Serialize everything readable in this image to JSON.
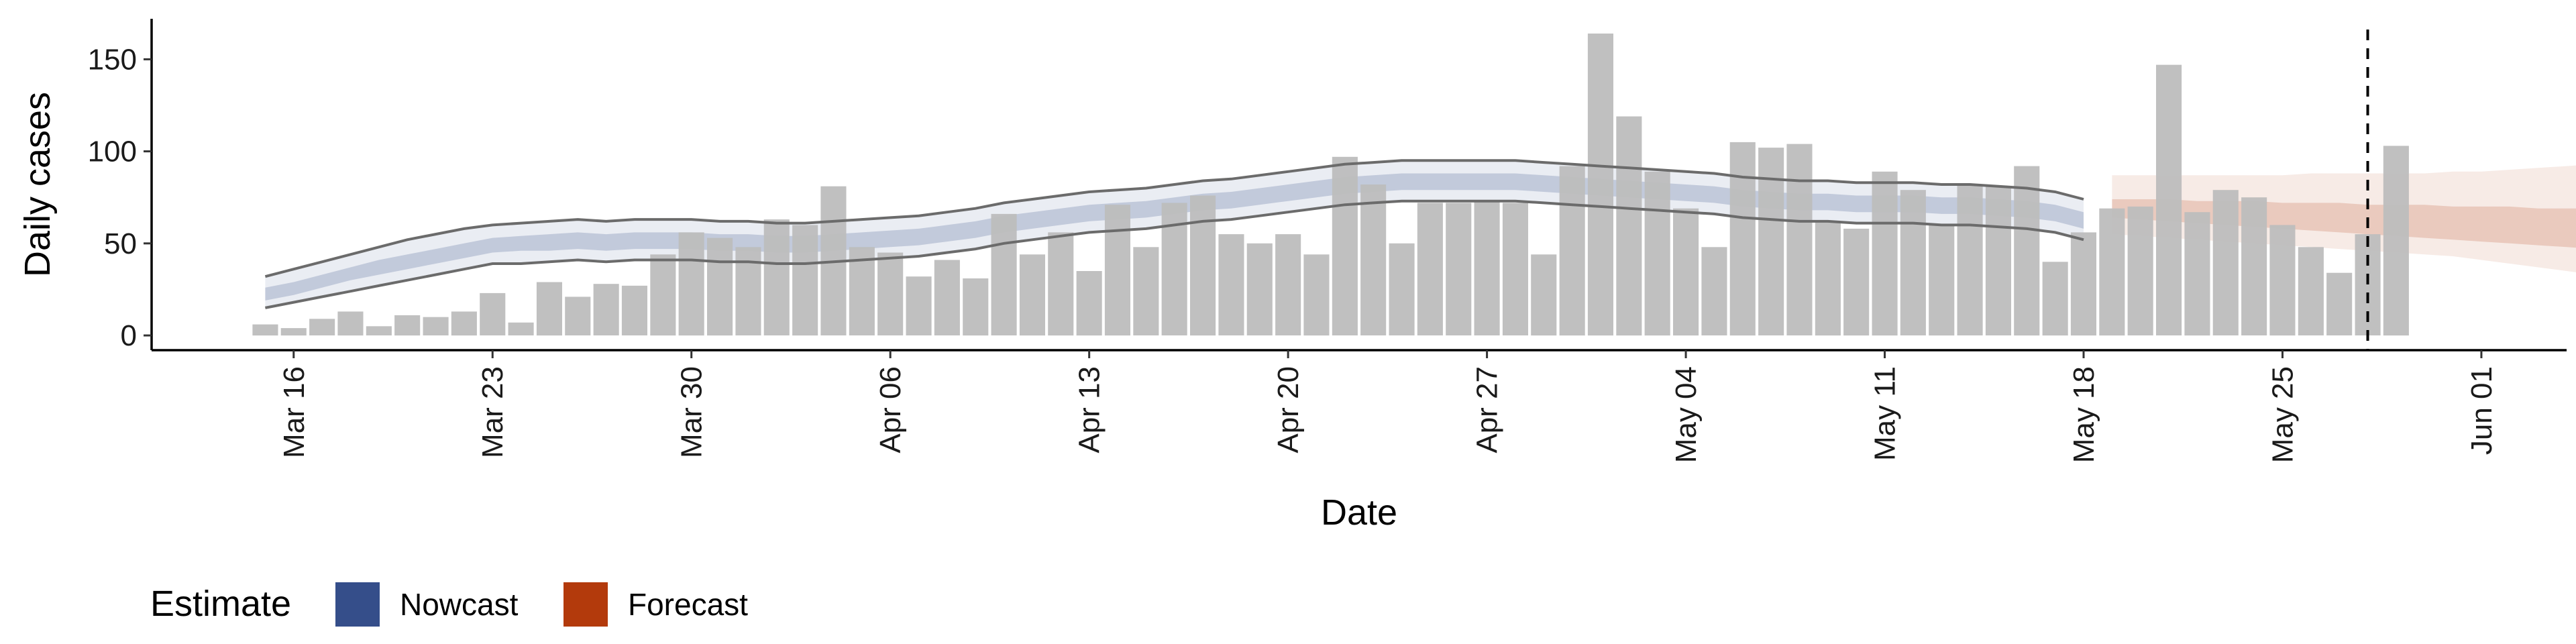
{
  "chart_data": {
    "type": "bar",
    "xlabel": "Date",
    "ylabel": "Daily cases",
    "xlim": [
      "2020-03-11",
      "2020-06-04"
    ],
    "ylim": [
      -8,
      172
    ],
    "x_ticks": [
      {
        "date": "2020-03-16",
        "label": "Mar 16"
      },
      {
        "date": "2020-03-23",
        "label": "Mar 23"
      },
      {
        "date": "2020-03-30",
        "label": "Mar 30"
      },
      {
        "date": "2020-04-06",
        "label": "Apr 06"
      },
      {
        "date": "2020-04-13",
        "label": "Apr 13"
      },
      {
        "date": "2020-04-20",
        "label": "Apr 20"
      },
      {
        "date": "2020-04-27",
        "label": "Apr 27"
      },
      {
        "date": "2020-05-04",
        "label": "May 04"
      },
      {
        "date": "2020-05-11",
        "label": "May 11"
      },
      {
        "date": "2020-05-18",
        "label": "May 18"
      },
      {
        "date": "2020-05-25",
        "label": "May 25"
      },
      {
        "date": "2020-06-01",
        "label": "Jun 01"
      }
    ],
    "y_ticks": [
      {
        "value": 0,
        "label": "0"
      },
      {
        "value": 50,
        "label": "50"
      },
      {
        "value": 100,
        "label": "100"
      },
      {
        "value": 150,
        "label": "150"
      }
    ],
    "grid": false,
    "legend_position": "bottom-left",
    "legend": {
      "title": "Estimate",
      "items": [
        {
          "label": "Nowcast",
          "color": "#354e8a"
        },
        {
          "label": "Forecast",
          "color": "#b33a0c"
        }
      ]
    },
    "bars": {
      "color": "#bdbdbd",
      "start_date": "2020-03-15",
      "values": [
        6,
        4,
        9,
        13,
        5,
        11,
        10,
        13,
        23,
        7,
        29,
        21,
        28,
        27,
        44,
        56,
        53,
        48,
        63,
        60,
        81,
        48,
        45,
        32,
        41,
        31,
        66,
        44,
        56,
        35,
        71,
        48,
        72,
        76,
        55,
        50,
        55,
        44,
        97,
        82,
        50,
        72,
        72,
        73,
        72,
        44,
        92,
        164,
        119,
        89,
        69,
        48,
        105,
        102,
        104,
        62,
        58,
        89,
        79,
        60,
        82,
        81,
        92,
        40,
        56,
        69,
        70,
        147,
        67,
        79,
        75,
        60,
        48,
        34,
        55,
        103
      ]
    },
    "vline_date": "2020-05-28",
    "nowcast": {
      "color": "#354e8a",
      "start_date": "2020-03-15",
      "dates_count": 65,
      "lower_90": [
        15,
        18,
        21,
        24,
        27,
        30,
        33,
        36,
        39,
        39,
        40,
        41,
        40,
        41,
        41,
        41,
        40,
        40,
        39,
        39,
        40,
        41,
        42,
        43,
        45,
        47,
        50,
        52,
        54,
        56,
        57,
        58,
        60,
        62,
        63,
        65,
        67,
        69,
        71,
        72,
        73,
        73,
        73,
        73,
        73,
        72,
        71,
        70,
        69,
        68,
        67,
        66,
        64,
        63,
        62,
        62,
        61,
        61,
        61,
        60,
        60,
        59,
        58,
        56,
        52
      ],
      "lower_50": [
        19,
        22,
        26,
        30,
        33,
        36,
        39,
        42,
        45,
        46,
        46,
        47,
        46,
        47,
        47,
        47,
        46,
        46,
        45,
        45,
        46,
        47,
        48,
        49,
        51,
        53,
        56,
        58,
        60,
        62,
        63,
        64,
        66,
        68,
        69,
        71,
        73,
        75,
        77,
        78,
        79,
        79,
        79,
        79,
        79,
        78,
        77,
        76,
        75,
        74,
        73,
        72,
        70,
        69,
        68,
        68,
        67,
        67,
        67,
        66,
        66,
        65,
        64,
        62,
        58
      ],
      "upper_50": [
        26,
        29,
        33,
        37,
        41,
        44,
        47,
        50,
        53,
        54,
        55,
        56,
        55,
        56,
        56,
        56,
        55,
        55,
        54,
        54,
        55,
        56,
        57,
        58,
        60,
        62,
        65,
        67,
        69,
        71,
        72,
        73,
        75,
        77,
        78,
        80,
        82,
        84,
        86,
        87,
        88,
        88,
        88,
        88,
        88,
        87,
        86,
        85,
        84,
        83,
        82,
        81,
        79,
        78,
        77,
        77,
        76,
        76,
        76,
        75,
        75,
        74,
        73,
        71,
        67
      ],
      "upper_90": [
        32,
        36,
        40,
        44,
        48,
        52,
        55,
        58,
        60,
        61,
        62,
        63,
        62,
        63,
        63,
        63,
        62,
        62,
        61,
        61,
        62,
        63,
        64,
        65,
        67,
        69,
        72,
        74,
        76,
        78,
        79,
        80,
        82,
        84,
        85,
        87,
        89,
        91,
        93,
        94,
        95,
        95,
        95,
        95,
        95,
        94,
        93,
        92,
        91,
        90,
        89,
        88,
        86,
        85,
        84,
        84,
        83,
        83,
        83,
        82,
        82,
        81,
        80,
        78,
        74
      ],
      "lower_outline": [
        15,
        18,
        21,
        24,
        27,
        30,
        33,
        36,
        39,
        39,
        40,
        41,
        40,
        41,
        41,
        41,
        40,
        40,
        39,
        39,
        40,
        41,
        42,
        43,
        45,
        47,
        50,
        52,
        54,
        56,
        57,
        58,
        60,
        62,
        63,
        65,
        67,
        69,
        71,
        72,
        73,
        73,
        73,
        73,
        73,
        72,
        71,
        70,
        69,
        68,
        67,
        66,
        64,
        63,
        62,
        62,
        61,
        61,
        61,
        60,
        60,
        59,
        58,
        56,
        52
      ],
      "upper_outline": [
        32,
        36,
        40,
        44,
        48,
        52,
        55,
        58,
        60,
        61,
        62,
        63,
        62,
        63,
        63,
        63,
        62,
        62,
        61,
        61,
        62,
        63,
        64,
        65,
        67,
        69,
        72,
        74,
        76,
        78,
        79,
        80,
        82,
        84,
        85,
        87,
        89,
        91,
        93,
        94,
        95,
        95,
        95,
        95,
        95,
        94,
        93,
        92,
        91,
        90,
        89,
        88,
        86,
        85,
        84,
        84,
        83,
        83,
        83,
        82,
        82,
        81,
        80,
        78,
        74
      ]
    },
    "forecast": {
      "color": "#b33a0c",
      "start_date": "2020-05-19",
      "lower_90": [
        55,
        54,
        53,
        52,
        51,
        50,
        49,
        48,
        47,
        46,
        45,
        44,
        43,
        41,
        39,
        37,
        35,
        33,
        31,
        29,
        27,
        25,
        24,
        23
      ],
      "lower_50": [
        64,
        63,
        62,
        61,
        60,
        59,
        58,
        57,
        56,
        55,
        54,
        53,
        52,
        51,
        50,
        49,
        48,
        47,
        46,
        45,
        44,
        43,
        42,
        41
      ],
      "upper_50": [
        74,
        74,
        74,
        73,
        73,
        73,
        72,
        72,
        72,
        71,
        71,
        71,
        70,
        70,
        70,
        69,
        69,
        69,
        68,
        68,
        68,
        68,
        68,
        68
      ],
      "upper_90": [
        87,
        87,
        87,
        87,
        87,
        87,
        87,
        88,
        88,
        88,
        88,
        88,
        89,
        89,
        90,
        91,
        92,
        93,
        93,
        93,
        93,
        93,
        93,
        92
      ]
    }
  }
}
